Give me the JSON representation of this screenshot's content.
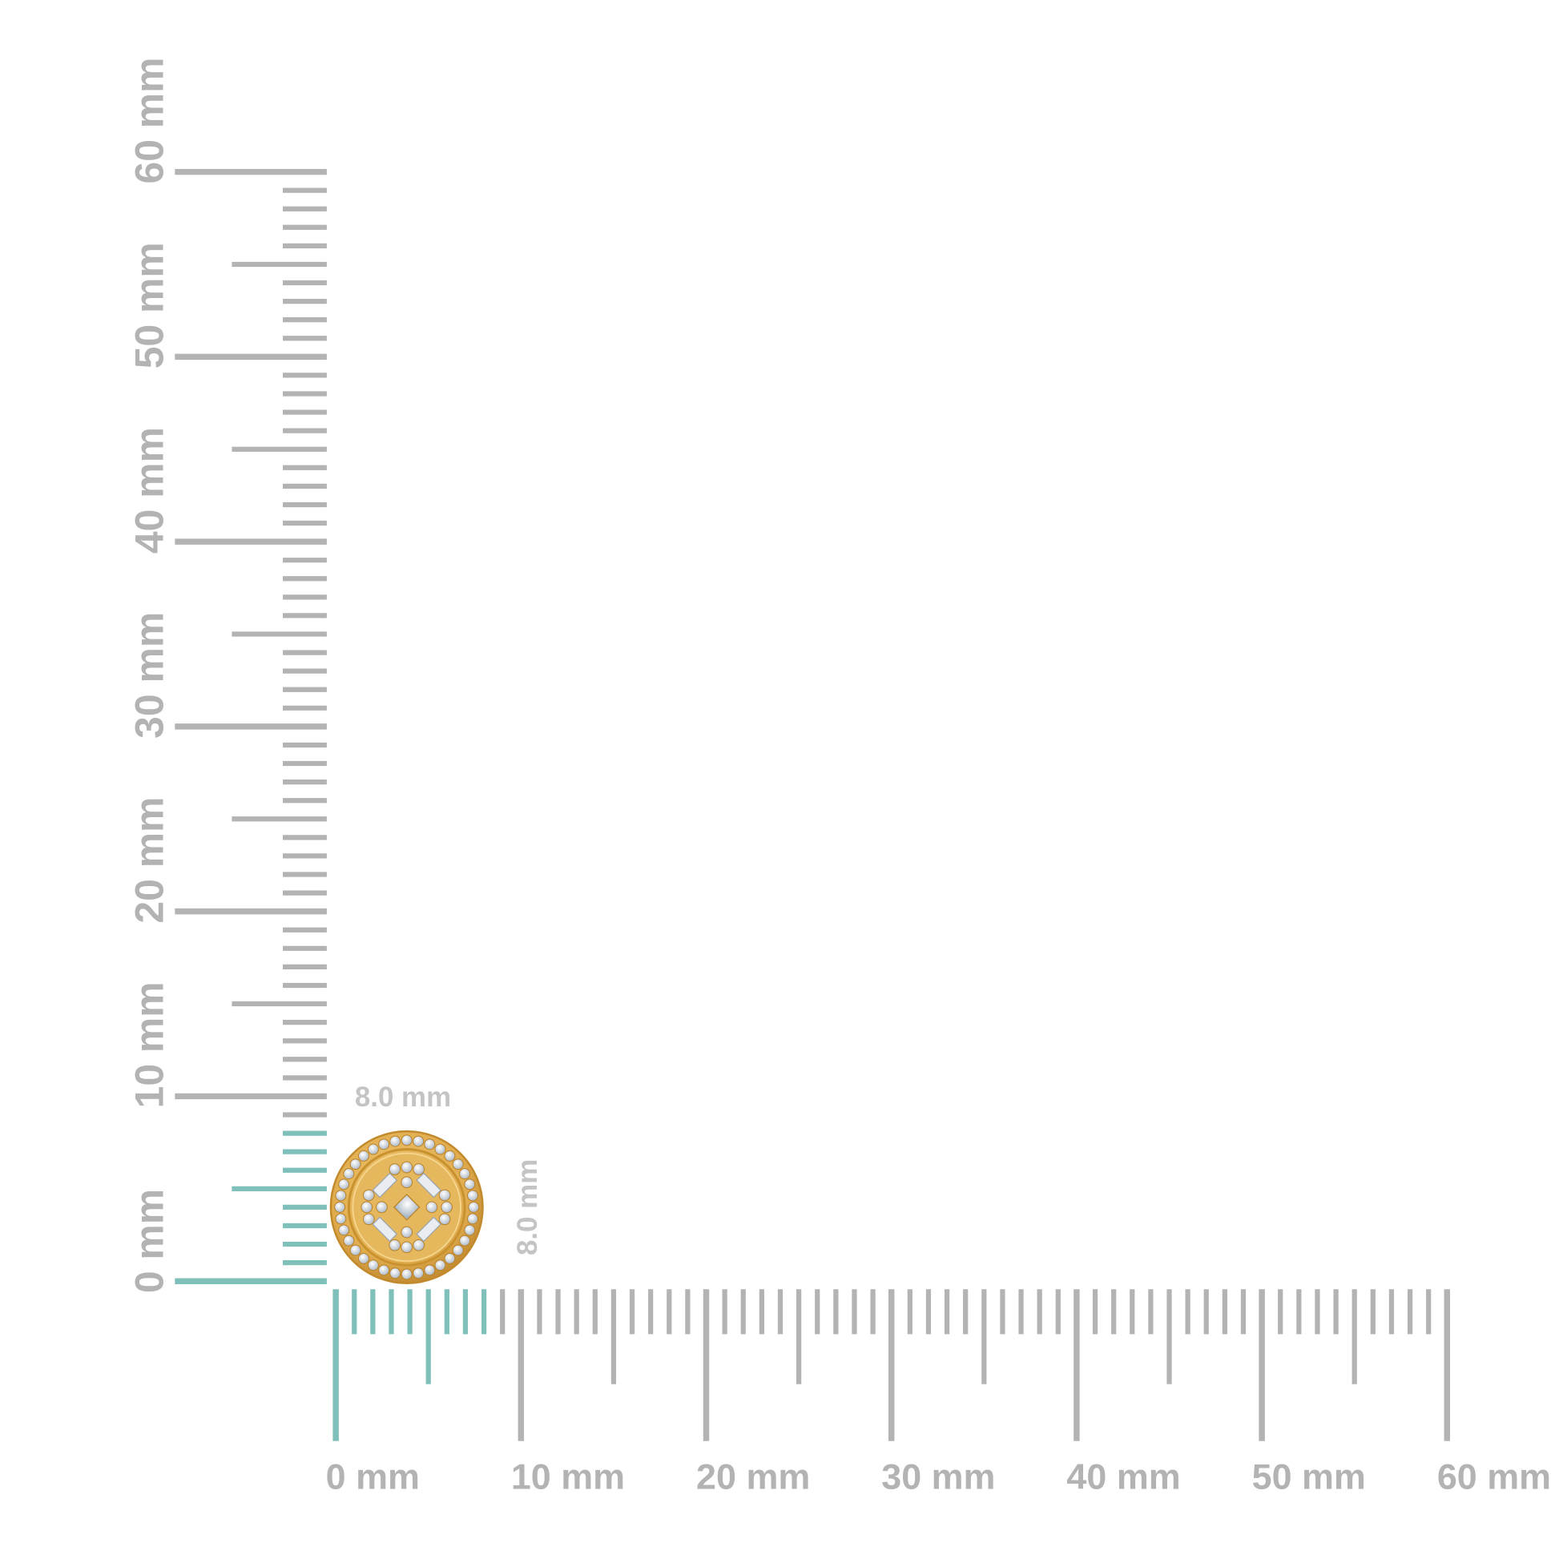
{
  "ruler": {
    "unit": "mm",
    "min": 0,
    "max": 60,
    "major_step": 10,
    "medium_step": 5,
    "minor_step": 1,
    "highlight_to": 8,
    "vertical_labels": [
      "0 mm",
      "10 mm",
      "20 mm",
      "30 mm",
      "40 mm",
      "50 mm",
      "60 mm"
    ],
    "horizontal_labels": [
      "0 mm",
      "10 mm",
      "20 mm",
      "30 mm",
      "40 mm",
      "50 mm",
      "60 mm"
    ]
  },
  "item": {
    "width_label": "8.0 mm",
    "height_label": "8.0 mm",
    "width_mm": 8.0,
    "height_mm": 8.0
  },
  "colors": {
    "tick_gray": "#b3b3b3",
    "tick_highlight": "#7fc0bb",
    "gold": "#e0ac4e",
    "gold_dark": "#c28a2c",
    "diamond": "#dfe6ee"
  }
}
